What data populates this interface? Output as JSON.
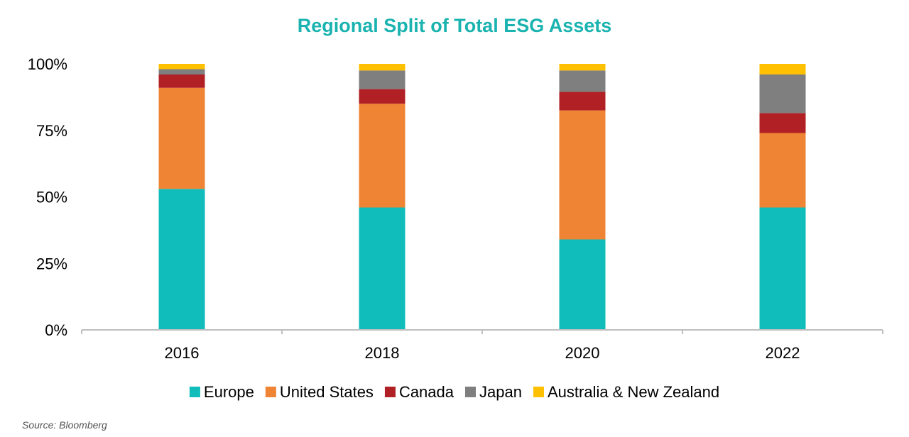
{
  "chart_data": {
    "type": "bar",
    "stacked": true,
    "title": "Regional Split of Total ESG Assets",
    "xlabel": "",
    "ylabel": "",
    "categories": [
      "2016",
      "2018",
      "2020",
      "2022"
    ],
    "ylim": [
      0,
      100
    ],
    "yticks": [
      0,
      25,
      50,
      75,
      100
    ],
    "ytick_labels": [
      "0%",
      "25%",
      "50%",
      "75%",
      "100%"
    ],
    "grid": false,
    "legend_position": "bottom",
    "series": [
      {
        "name": "Europe",
        "color": "#10bdbb",
        "values": [
          53,
          46,
          34,
          46
        ]
      },
      {
        "name": "United States",
        "color": "#ef8434",
        "values": [
          38,
          39,
          48.5,
          28
        ]
      },
      {
        "name": "Canada",
        "color": "#b02024",
        "values": [
          5,
          5.5,
          7,
          7.5
        ]
      },
      {
        "name": "Japan",
        "color": "#7f7f7f",
        "values": [
          2,
          7,
          8,
          14.5
        ]
      },
      {
        "name": "Australia & New Zealand",
        "color": "#ffc000",
        "values": [
          2,
          2.5,
          2.5,
          4
        ]
      }
    ]
  },
  "source": "Source: Bloomberg"
}
